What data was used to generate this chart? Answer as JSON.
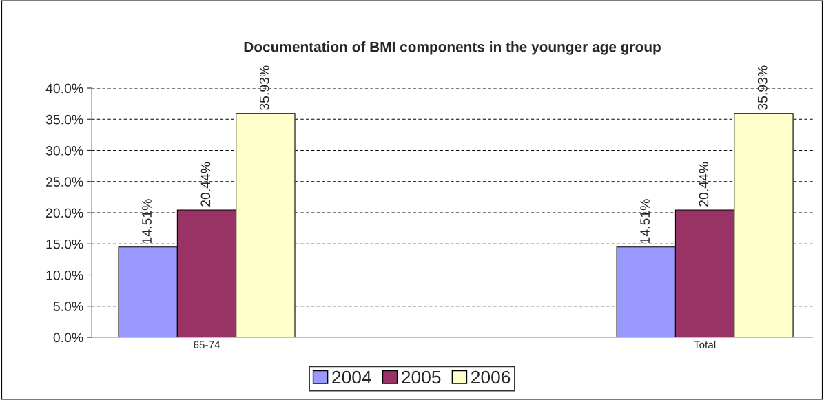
{
  "chart_data": {
    "type": "bar",
    "title": "Documentation of BMI components in the younger age group",
    "categories": [
      "65-74",
      "Total"
    ],
    "series": [
      {
        "name": "2004",
        "color": "#9999ff",
        "values": [
          14.51,
          14.51
        ],
        "value_labels": [
          "14.51%",
          "14.51%"
        ]
      },
      {
        "name": "2005",
        "color": "#993366",
        "values": [
          20.44,
          20.44
        ],
        "value_labels": [
          "20.44%",
          "20.44%"
        ]
      },
      {
        "name": "2006",
        "color": "#ffffcc",
        "values": [
          35.93,
          35.93
        ],
        "value_labels": [
          "35.93%",
          "35.93%"
        ]
      }
    ],
    "ylim": [
      0,
      40
    ],
    "yticks": [
      {
        "value": 0,
        "label": "0.0%"
      },
      {
        "value": 5,
        "label": "5.0%"
      },
      {
        "value": 10,
        "label": "10.0%"
      },
      {
        "value": 15,
        "label": "15.0%"
      },
      {
        "value": 20,
        "label": "20.0%"
      },
      {
        "value": 25,
        "label": "25.0%"
      },
      {
        "value": 30,
        "label": "30.0%"
      },
      {
        "value": 35,
        "label": "35.0%"
      },
      {
        "value": 40,
        "label": "40.0%"
      }
    ],
    "grid": "y",
    "legend": "bottom"
  }
}
